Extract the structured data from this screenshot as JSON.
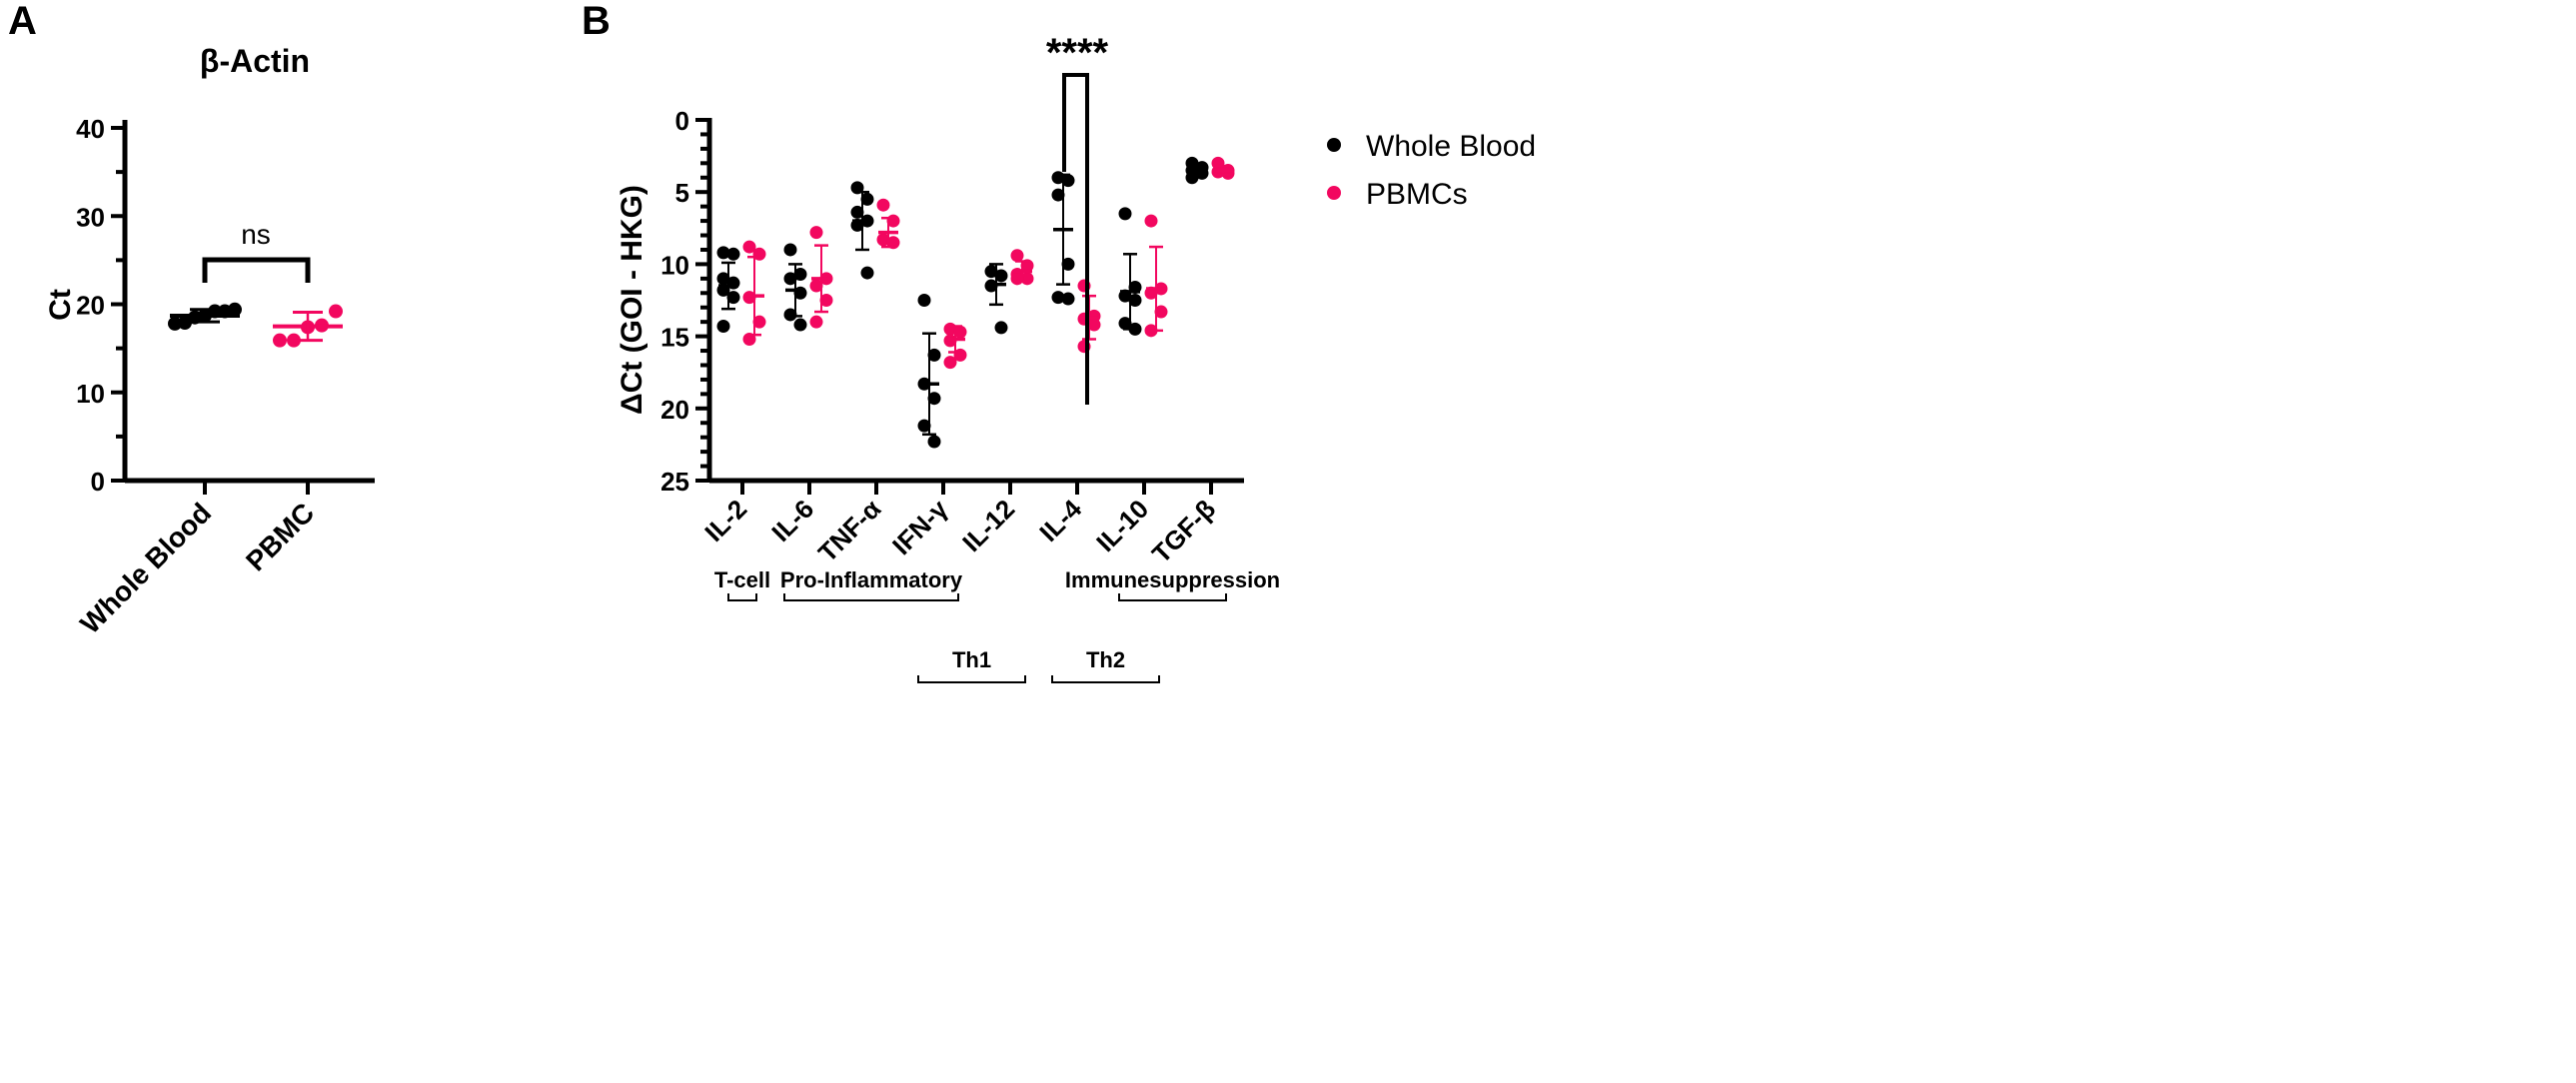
{
  "colors": {
    "whole_blood": "#000000",
    "pbmc": "#f2075f"
  },
  "chart_data": [
    {
      "panel": "A",
      "type": "scatter",
      "title": "β-Actin",
      "ylabel": "Ct",
      "ylim": [
        0,
        40
      ],
      "yticks": [
        "0",
        "10",
        "20",
        "30",
        "40"
      ],
      "categories": [
        "Whole Blood",
        "PBMC"
      ],
      "series": [
        {
          "name": "Whole Blood",
          "values": [
            17.8,
            17.9,
            18.5,
            18.7,
            19.2,
            19.2,
            19.4
          ],
          "mean": 18.7,
          "sd": 0.7
        },
        {
          "name": "PBMC",
          "values": [
            15.9,
            15.9,
            17.4,
            17.6,
            19.2
          ],
          "mean": 17.5,
          "sd": 1.6
        }
      ],
      "annotation": "ns"
    },
    {
      "panel": "B",
      "type": "scatter",
      "ylabel": "ΔCt (GOI - HKG)",
      "ylim": [
        0,
        25
      ],
      "y_inverted": true,
      "yticks": [
        "0",
        "5",
        "10",
        "15",
        "20",
        "25"
      ],
      "categories": [
        "IL-2",
        "IL-6",
        "TNF-α",
        "IFN-γ",
        "IL-12",
        "IL-4",
        "IL-10",
        "TGF-β"
      ],
      "series": [
        {
          "name": "Whole Blood",
          "groups": [
            {
              "values": [
                9.2,
                9.3,
                11.0,
                11.3,
                11.8,
                12.3,
                14.3
              ],
              "mean": 11.5,
              "sd": 1.6
            },
            {
              "values": [
                9.0,
                10.7,
                11.0,
                12.0,
                13.5,
                14.2
              ],
              "mean": 11.8,
              "sd": 1.8
            },
            {
              "values": [
                4.7,
                5.5,
                6.4,
                7.0,
                7.3,
                10.6
              ],
              "mean": 7.0,
              "sd": 2.0
            },
            {
              "values": [
                12.5,
                16.3,
                18.3,
                19.3,
                21.2,
                22.3
              ],
              "mean": 18.3,
              "sd": 3.5
            },
            {
              "values": [
                10.5,
                10.8,
                11.5,
                14.4
              ],
              "mean": 11.4,
              "sd": 1.4
            },
            {
              "values": [
                4.0,
                4.2,
                5.2,
                10.0,
                12.3,
                12.4
              ],
              "mean": 7.6,
              "sd": 3.8
            },
            {
              "values": [
                6.5,
                11.6,
                12.2,
                12.5,
                14.1,
                14.5
              ],
              "mean": 11.9,
              "sd": 2.6
            },
            {
              "values": [
                3.0,
                3.3,
                3.5,
                3.7,
                4.0
              ],
              "mean": 3.5,
              "sd": 0.3
            }
          ]
        },
        {
          "name": "PBMCs",
          "groups": [
            {
              "values": [
                8.8,
                9.3,
                12.3,
                14.0,
                15.2
              ],
              "mean": 12.2,
              "sd": 2.7
            },
            {
              "values": [
                7.8,
                11.0,
                11.5,
                12.5,
                14.0
              ],
              "mean": 11.0,
              "sd": 2.3
            },
            {
              "values": [
                5.9,
                7.0,
                8.3,
                8.5
              ],
              "mean": 7.8,
              "sd": 1.0
            },
            {
              "values": [
                14.5,
                14.7,
                15.3,
                16.3,
                16.8
              ],
              "mean": 15.2,
              "sd": 0.9
            },
            {
              "values": [
                9.4,
                10.1,
                10.7,
                11.0,
                11.0
              ],
              "mean": 10.5,
              "sd": 0.7
            },
            {
              "values": [
                11.5,
                13.6,
                13.8,
                14.2,
                15.7
              ],
              "mean": 13.7,
              "sd": 1.5
            },
            {
              "values": [
                7.0,
                11.7,
                12.0,
                13.3,
                14.6
              ],
              "mean": 11.7,
              "sd": 2.9
            },
            {
              "values": [
                3.0,
                3.5,
                3.6,
                3.7
              ],
              "mean": 3.5,
              "sd": 0.3
            }
          ]
        }
      ],
      "annotation": "****",
      "legend": {
        "position": "top-right",
        "entries": [
          "Whole Blood",
          "PBMCs"
        ]
      },
      "groupings": [
        {
          "label": "T-cell",
          "from": 0,
          "to": 0,
          "row": 1
        },
        {
          "label": "Pro-Inflammatory",
          "from": 1,
          "to": 3,
          "row": 1
        },
        {
          "label": "Immunesuppression",
          "from": 6,
          "to": 7,
          "row": 1
        },
        {
          "label": "Th1",
          "from": 3,
          "to": 4,
          "row": 2
        },
        {
          "label": "Th2",
          "from": 5,
          "to": 6,
          "row": 2
        }
      ]
    }
  ],
  "panel_labels": [
    "A",
    "B"
  ]
}
